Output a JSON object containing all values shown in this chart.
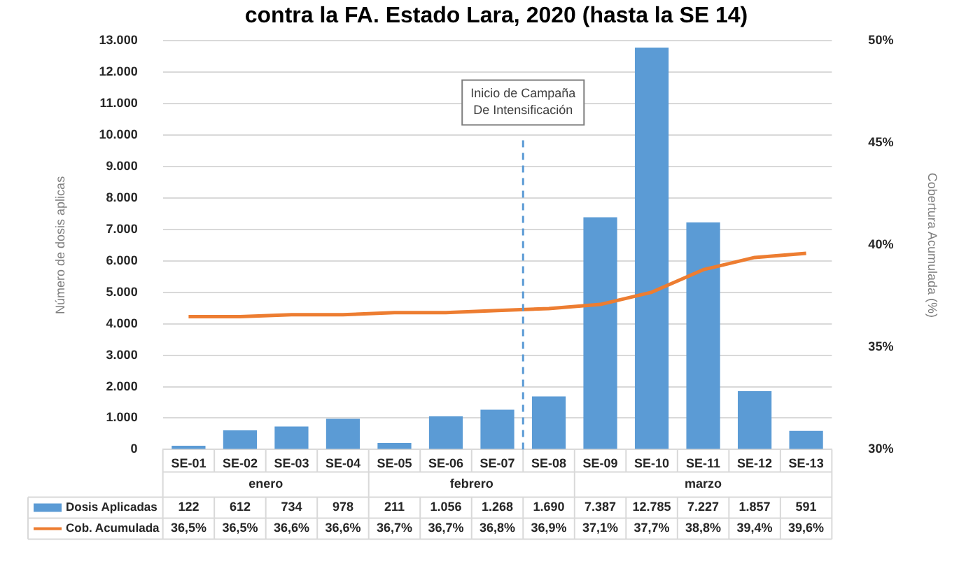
{
  "chart_data": {
    "type": "bar",
    "title": "contra la FA. Estado Lara, 2020 (hasta la SE 14)",
    "categories": [
      "SE-01",
      "SE-02",
      "SE-03",
      "SE-04",
      "SE-05",
      "SE-06",
      "SE-07",
      "SE-08",
      "SE-09",
      "SE-10",
      "SE-11",
      "SE-12",
      "SE-13"
    ],
    "series": [
      {
        "name": "Dosis Aplicadas",
        "color": "#5b9bd5",
        "values": [
          122,
          612,
          734,
          978,
          211,
          1056,
          1268,
          1690,
          7387,
          12785,
          7227,
          1857,
          591
        ],
        "value_labels": [
          "122",
          "612",
          "734",
          "978",
          "211",
          "1.056",
          "1.268",
          "1.690",
          "7.387",
          "12.785",
          "7.227",
          "1.857",
          "591"
        ]
      },
      {
        "name": "Cob. Acumulada",
        "type": "line",
        "axis": "y2",
        "color": "#ed7d31",
        "values": [
          36.5,
          36.5,
          36.6,
          36.6,
          36.7,
          36.7,
          36.8,
          36.9,
          37.1,
          37.7,
          38.8,
          39.4,
          39.6
        ],
        "value_labels": [
          "36,5%",
          "36,5%",
          "36,6%",
          "36,6%",
          "36,7%",
          "36,7%",
          "36,8%",
          "36,9%",
          "37,1%",
          "37,7%",
          "38,8%",
          "39,4%",
          "39,6%"
        ]
      }
    ],
    "ylabel": "Número de dosis aplicas",
    "y2label": "Cobertura Acumulada (%)",
    "ylim": [
      0,
      13000
    ],
    "yticks": [
      {
        "value": 0,
        "label": "0"
      },
      {
        "value": 1000,
        "label": "1.000"
      },
      {
        "value": 2000,
        "label": "2.000"
      },
      {
        "value": 3000,
        "label": "3.000"
      },
      {
        "value": 4000,
        "label": "4.000"
      },
      {
        "value": 5000,
        "label": "5.000"
      },
      {
        "value": 6000,
        "label": "6.000"
      },
      {
        "value": 7000,
        "label": "7.000"
      },
      {
        "value": 8000,
        "label": "8.000"
      },
      {
        "value": 9000,
        "label": "9.000"
      },
      {
        "value": 10000,
        "label": "10.000"
      },
      {
        "value": 11000,
        "label": "11.000"
      },
      {
        "value": 12000,
        "label": "12.000"
      },
      {
        "value": 13000,
        "label": "13.000"
      }
    ],
    "y2lim": [
      30,
      50
    ],
    "y2ticks": [
      {
        "value": 30,
        "label": "30%"
      },
      {
        "value": 35,
        "label": "35%"
      },
      {
        "value": 40,
        "label": "40%"
      },
      {
        "value": 45,
        "label": "45%"
      },
      {
        "value": 50,
        "label": "50%"
      }
    ],
    "ref_lines": [
      {
        "axis": "x",
        "value": "SE-08",
        "label": "Inicio de Campaña\nDe Intensificación",
        "color": "#5b9bd5",
        "line_style": "dashed"
      }
    ],
    "annotations": [
      "enero",
      "febrero",
      "marzo"
    ],
    "grid": "y",
    "legend": "bottom",
    "marker": "none"
  }
}
